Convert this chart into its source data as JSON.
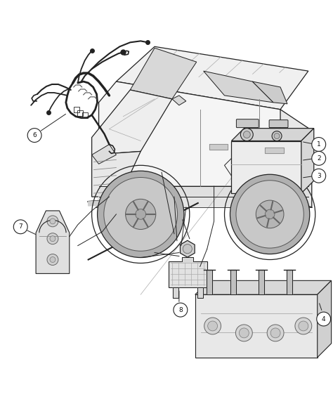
{
  "background_color": "#ffffff",
  "figure_width": 4.74,
  "figure_height": 5.75,
  "dpi": 100,
  "image_data": "target_image"
}
